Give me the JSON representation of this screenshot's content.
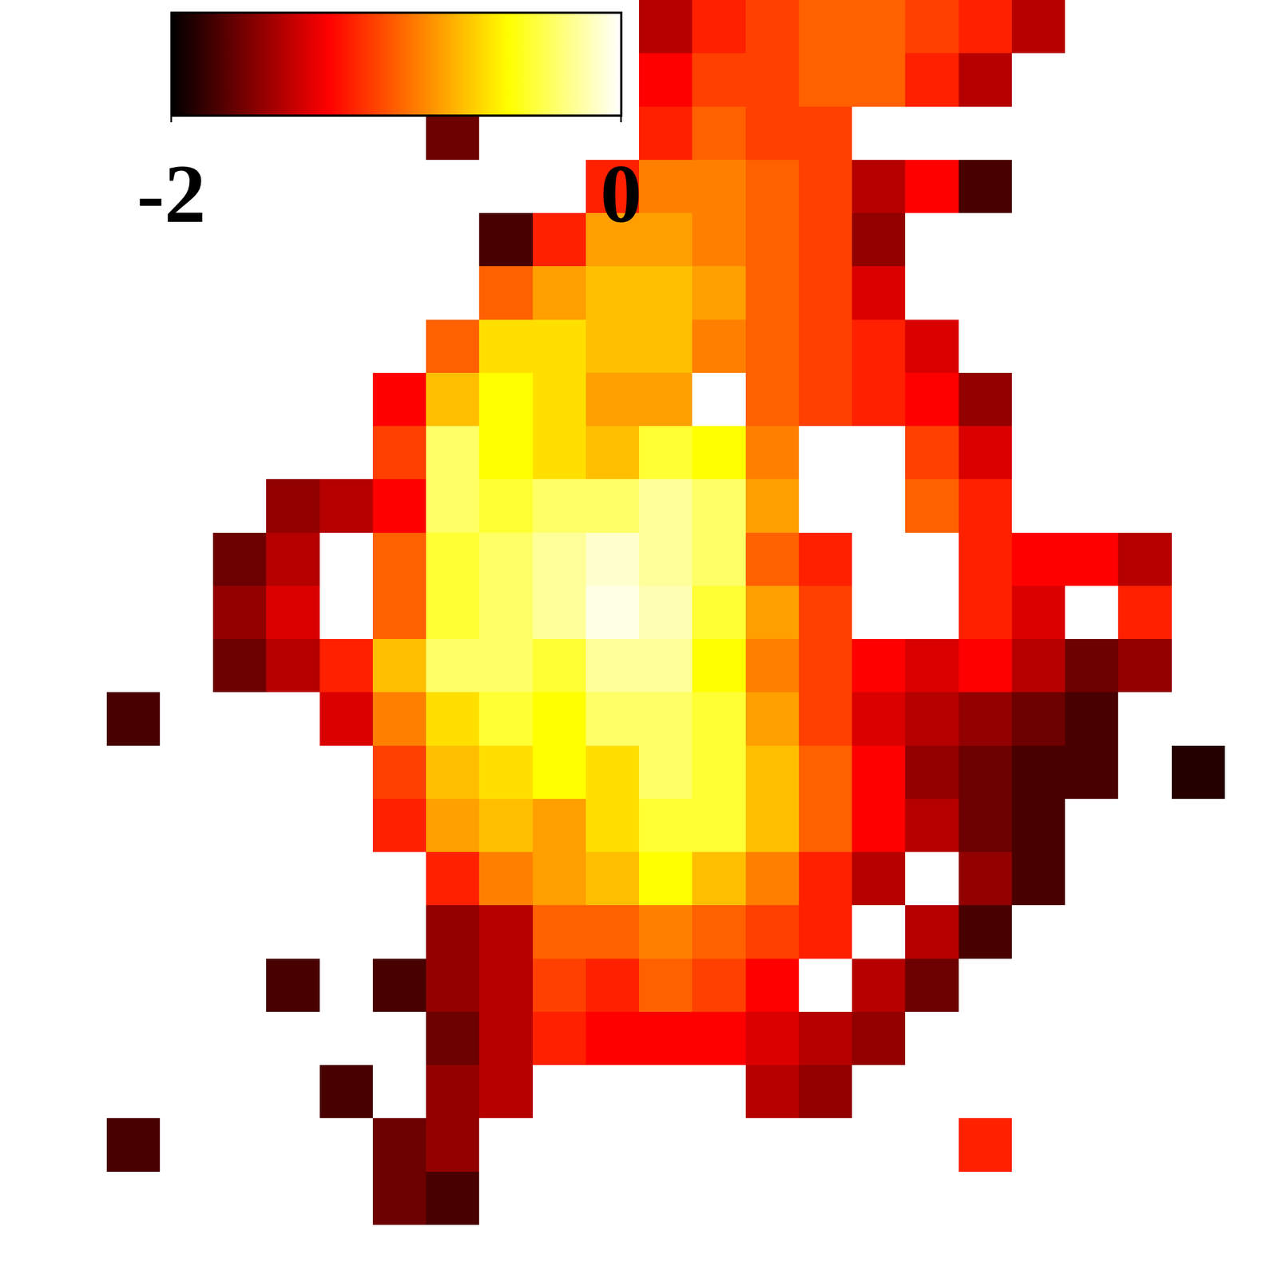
{
  "chart_data": {
    "type": "heatmap",
    "tick_labels": false,
    "colorbar": {
      "range": [
        -2,
        0
      ],
      "ticks": [
        -2,
        0
      ]
    },
    "z": [
      [
        null,
        null,
        null,
        null,
        null,
        null,
        null,
        null,
        null,
        null,
        null,
        null,
        -1.5,
        -1.2,
        -1.1,
        -1.0,
        -1.0,
        -1.1,
        -1.2,
        -1.5,
        null,
        null,
        null,
        null
      ],
      [
        null,
        null,
        null,
        null,
        null,
        null,
        null,
        null,
        null,
        null,
        null,
        null,
        -1.3,
        -1.1,
        -1.1,
        -1.0,
        -1.0,
        -1.2,
        -1.5,
        null,
        null,
        null,
        null,
        null
      ],
      [
        null,
        null,
        null,
        null,
        null,
        null,
        null,
        null,
        -1.7,
        null,
        null,
        null,
        -1.2,
        -1.0,
        -1.1,
        -1.1,
        null,
        null,
        null,
        null,
        null,
        null,
        null,
        null
      ],
      [
        null,
        null,
        null,
        null,
        null,
        null,
        null,
        null,
        null,
        null,
        null,
        -1.2,
        -0.9,
        -0.9,
        -1.0,
        -1.1,
        -1.5,
        -1.3,
        -1.8,
        null,
        null,
        null,
        null,
        null
      ],
      [
        null,
        null,
        null,
        null,
        null,
        null,
        null,
        null,
        null,
        -1.8,
        -1.2,
        -0.8,
        -0.8,
        -0.9,
        -1.0,
        -1.1,
        -1.6,
        null,
        null,
        null,
        null,
        null,
        null,
        null
      ],
      [
        null,
        null,
        null,
        null,
        null,
        null,
        null,
        null,
        null,
        -1.0,
        -0.8,
        -0.7,
        -0.7,
        -0.8,
        -1.0,
        -1.1,
        -1.4,
        null,
        null,
        null,
        null,
        null,
        null,
        null
      ],
      [
        null,
        null,
        null,
        null,
        null,
        null,
        null,
        null,
        -1.0,
        -0.6,
        -0.6,
        -0.7,
        -0.7,
        -0.9,
        -1.0,
        -1.1,
        -1.2,
        -1.4,
        null,
        null,
        null,
        null,
        null,
        null
      ],
      [
        null,
        null,
        null,
        null,
        null,
        null,
        null,
        -1.3,
        -0.7,
        -0.5,
        -0.6,
        -0.8,
        -0.8,
        null,
        -1.0,
        -1.1,
        -1.2,
        -1.3,
        -1.6,
        null,
        null,
        null,
        null,
        null
      ],
      [
        null,
        null,
        null,
        null,
        null,
        null,
        null,
        -1.1,
        -0.3,
        -0.5,
        -0.6,
        -0.7,
        -0.4,
        -0.5,
        -0.9,
        null,
        null,
        -1.1,
        -1.4,
        null,
        null,
        null,
        null,
        null
      ],
      [
        null,
        null,
        null,
        null,
        null,
        -1.6,
        -1.5,
        -1.3,
        -0.3,
        -0.4,
        -0.3,
        -0.3,
        -0.2,
        -0.3,
        -0.8,
        null,
        null,
        -1.0,
        -1.2,
        null,
        null,
        null,
        null,
        null
      ],
      [
        null,
        null,
        null,
        null,
        -1.7,
        -1.5,
        null,
        -1.0,
        -0.4,
        -0.3,
        -0.2,
        -0.1,
        -0.2,
        -0.3,
        -1.0,
        -1.2,
        null,
        null,
        -1.2,
        -1.3,
        -1.3,
        -1.5,
        null,
        null
      ],
      [
        null,
        null,
        null,
        null,
        -1.6,
        -1.4,
        null,
        -1.0,
        -0.4,
        -0.3,
        -0.2,
        -0.05,
        -0.15,
        -0.4,
        -0.8,
        -1.1,
        null,
        null,
        -1.2,
        -1.4,
        null,
        -1.2,
        null,
        null
      ],
      [
        null,
        null,
        null,
        null,
        -1.7,
        -1.5,
        -1.2,
        -0.7,
        -0.3,
        -0.3,
        -0.4,
        -0.2,
        -0.2,
        -0.5,
        -0.9,
        -1.1,
        -1.3,
        -1.4,
        -1.3,
        -1.5,
        -1.7,
        -1.6,
        null,
        null
      ],
      [
        null,
        null,
        -1.8,
        null,
        null,
        null,
        -1.4,
        -0.9,
        -0.6,
        -0.4,
        -0.5,
        -0.3,
        -0.3,
        -0.4,
        -0.8,
        -1.1,
        -1.4,
        -1.5,
        -1.6,
        -1.7,
        -1.8,
        null,
        null,
        null
      ],
      [
        null,
        null,
        null,
        null,
        null,
        null,
        null,
        -1.1,
        -0.7,
        -0.6,
        -0.5,
        -0.6,
        -0.3,
        -0.4,
        -0.7,
        -1.0,
        -1.3,
        -1.6,
        -1.7,
        -1.8,
        -1.8,
        null,
        -1.9,
        null
      ],
      [
        null,
        null,
        null,
        null,
        null,
        null,
        null,
        -1.2,
        -0.8,
        -0.7,
        -0.8,
        -0.6,
        -0.4,
        -0.4,
        -0.7,
        -1.0,
        -1.3,
        -1.5,
        -1.7,
        -1.8,
        null,
        null,
        null,
        null
      ],
      [
        null,
        null,
        null,
        null,
        null,
        null,
        null,
        null,
        -1.2,
        -0.9,
        -0.8,
        -0.7,
        -0.5,
        -0.7,
        -0.9,
        -1.2,
        -1.5,
        null,
        -1.6,
        -1.8,
        null,
        null,
        null,
        null
      ],
      [
        null,
        null,
        null,
        null,
        null,
        null,
        null,
        null,
        -1.6,
        -1.5,
        -1.0,
        -1.0,
        -0.9,
        -1.0,
        -1.1,
        -1.2,
        null,
        -1.5,
        -1.8,
        null,
        null,
        null,
        null,
        null
      ],
      [
        null,
        null,
        null,
        null,
        null,
        -1.8,
        null,
        -1.8,
        -1.6,
        -1.5,
        -1.1,
        -1.2,
        -1.0,
        -1.1,
        -1.3,
        null,
        -1.5,
        -1.7,
        null,
        null,
        null,
        null,
        null,
        null
      ],
      [
        null,
        null,
        null,
        null,
        null,
        null,
        null,
        null,
        -1.7,
        -1.5,
        -1.2,
        -1.3,
        -1.3,
        -1.3,
        -1.4,
        -1.5,
        -1.6,
        null,
        null,
        null,
        null,
        null,
        null,
        null
      ],
      [
        null,
        null,
        null,
        null,
        null,
        null,
        -1.8,
        null,
        -1.6,
        -1.5,
        null,
        null,
        null,
        null,
        -1.5,
        -1.6,
        null,
        null,
        null,
        null,
        null,
        null,
        null,
        null
      ],
      [
        null,
        null,
        -1.8,
        null,
        null,
        null,
        null,
        -1.7,
        -1.6,
        null,
        null,
        null,
        null,
        null,
        null,
        null,
        null,
        null,
        -1.2,
        null,
        null,
        null,
        null,
        null
      ],
      [
        null,
        null,
        null,
        null,
        null,
        null,
        null,
        -1.7,
        -1.8,
        null,
        null,
        null,
        null,
        null,
        null,
        null,
        null,
        null,
        null,
        null,
        null,
        null,
        null,
        null
      ],
      [
        null,
        null,
        null,
        null,
        null,
        null,
        null,
        null,
        null,
        null,
        null,
        null,
        null,
        null,
        null,
        null,
        null,
        null,
        null,
        null,
        null,
        null,
        null,
        null
      ]
    ]
  }
}
